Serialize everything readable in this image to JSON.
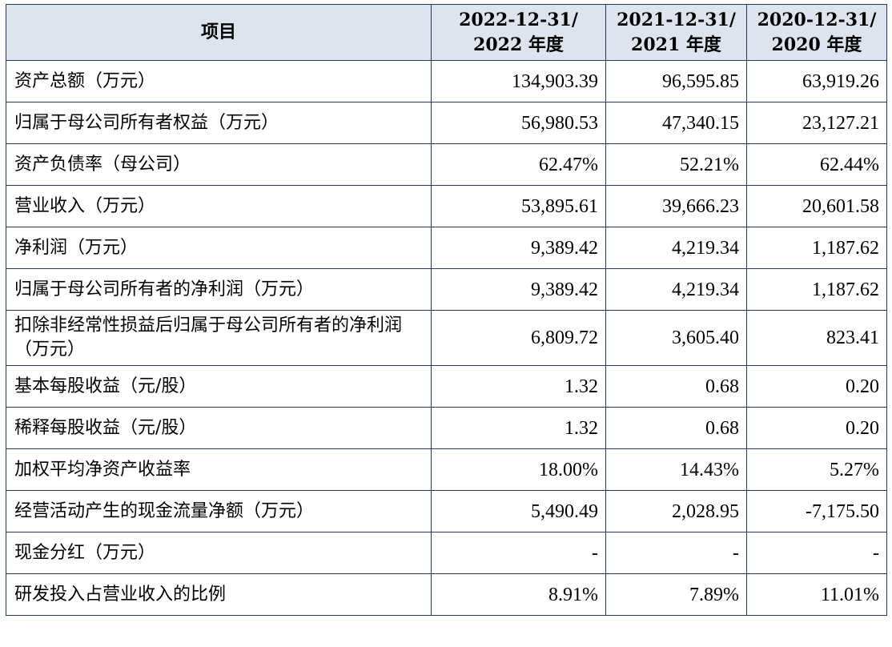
{
  "header": {
    "item": "项目",
    "periods": [
      {
        "line1": "2022-12-31/",
        "line2": "2022 年度"
      },
      {
        "line1": "2021-12-31/",
        "line2": "2021 年度"
      },
      {
        "line1": "2020-12-31/",
        "line2": "2020 年度"
      }
    ]
  },
  "rows": [
    {
      "label": "资产总额（万元）",
      "values": [
        "134,903.39",
        "96,595.85",
        "63,919.26"
      ]
    },
    {
      "label": "归属于母公司所有者权益（万元）",
      "values": [
        "56,980.53",
        "47,340.15",
        "23,127.21"
      ]
    },
    {
      "label": "资产负债率（母公司）",
      "values": [
        "62.47%",
        "52.21%",
        "62.44%"
      ]
    },
    {
      "label": "营业收入（万元）",
      "values": [
        "53,895.61",
        "39,666.23",
        "20,601.58"
      ]
    },
    {
      "label": "净利润（万元）",
      "values": [
        "9,389.42",
        "4,219.34",
        "1,187.62"
      ]
    },
    {
      "label": "归属于母公司所有者的净利润（万元）",
      "values": [
        "9,389.42",
        "4,219.34",
        "1,187.62"
      ]
    },
    {
      "label": "扣除非经常性损益后归属于母公司所有者的净利润（万元）",
      "values": [
        "6,809.72",
        "3,605.40",
        "823.41"
      ]
    },
    {
      "label": "基本每股收益（元/股）",
      "values": [
        "1.32",
        "0.68",
        "0.20"
      ]
    },
    {
      "label": "稀释每股收益（元/股）",
      "values": [
        "1.32",
        "0.68",
        "0.20"
      ]
    },
    {
      "label": "加权平均净资产收益率",
      "values": [
        "18.00%",
        "14.43%",
        "5.27%"
      ]
    },
    {
      "label": "经营活动产生的现金流量净额（万元）",
      "values": [
        "5,490.49",
        "2,028.95",
        "-7,175.50"
      ]
    },
    {
      "label": "现金分红（万元）",
      "values": [
        "-",
        "-",
        "-"
      ]
    },
    {
      "label": "研发投入占营业收入的比例",
      "values": [
        "8.91%",
        "7.89%",
        "11.01%"
      ]
    }
  ]
}
